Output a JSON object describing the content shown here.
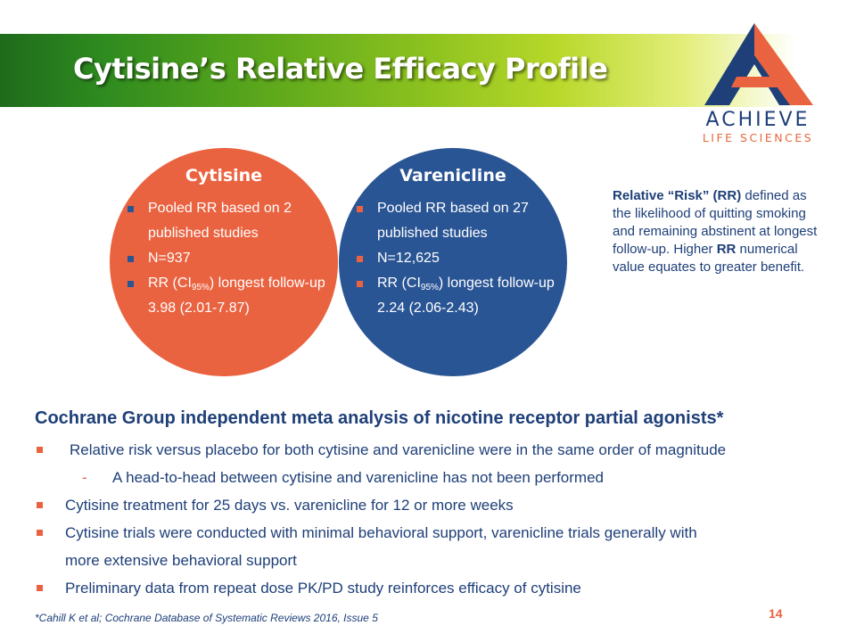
{
  "header": {
    "title": "Cytisine’s Relative Efficacy Profile",
    "logo_name": "ACHIEVE",
    "logo_subtitle": "LIFE SCIENCES"
  },
  "circles": [
    {
      "title": "Cytisine",
      "items": [
        {
          "text": "Pooled RR based on 2 published studies"
        },
        {
          "text": "N=937"
        },
        {
          "pre": "RR (CI",
          "sub": "95%",
          "post": ") longest follow-up 3.98 (2.01-7.87)"
        }
      ]
    },
    {
      "title": "Varenicline",
      "items": [
        {
          "text": "Pooled RR based on 27 published studies"
        },
        {
          "text": "N=12,625"
        },
        {
          "pre": "RR (CI",
          "sub": "95%",
          "post": ") longest follow-up 2.24 (2.06-2.43)"
        }
      ]
    }
  ],
  "definition": {
    "term": "Relative “Risk” (RR)",
    "text1": " defined as the likelihood of quitting smoking and remaining abstinent  at longest follow-up. Higher ",
    "term2": "RR",
    "text2": " numerical value equates to greater benefit."
  },
  "section": {
    "heading": "Cochrane Group independent meta analysis of nicotine receptor partial agonists*",
    "bullets": [
      "Relative risk versus placebo for both cytisine and varenicline were in the same order of magnitude",
      "A head-to-head between cytisine and varenicline has not been performed",
      "Cytisine treatment for 25 days vs. varenicline for 12 or more weeks",
      "Cytisine trials were conducted with minimal behavioral support, varenicline trials generally with",
      "more extensive behavioral support",
      "Preliminary data from repeat dose PK/PD study reinforces efficacy of cytisine"
    ],
    "dash": "-"
  },
  "footnote": "*Cahill K et al; Cochrane Database of Systematic Reviews 2016, Issue 5",
  "page_number": "14",
  "colors": {
    "navy": "#1e3f78",
    "orange": "#ea6341",
    "blue_circle": "#2a5594",
    "green": "#5aa61c"
  }
}
